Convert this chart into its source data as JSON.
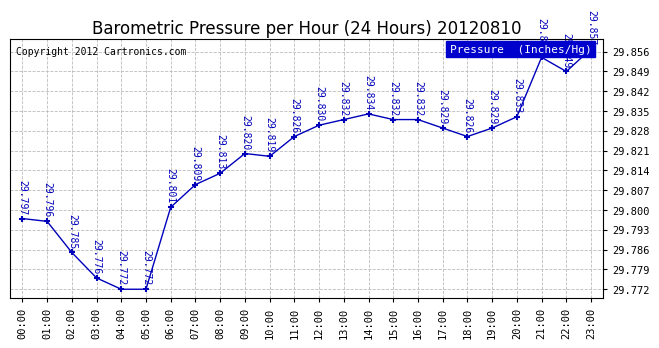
{
  "title": "Barometric Pressure per Hour (24 Hours) 20120810",
  "copyright": "Copyright 2012 Cartronics.com",
  "legend_label": "Pressure  (Inches/Hg)",
  "hours": [
    "00:00",
    "01:00",
    "02:00",
    "03:00",
    "04:00",
    "05:00",
    "06:00",
    "07:00",
    "08:00",
    "09:00",
    "10:00",
    "11:00",
    "12:00",
    "13:00",
    "14:00",
    "15:00",
    "16:00",
    "17:00",
    "18:00",
    "19:00",
    "20:00",
    "21:00",
    "22:00",
    "23:00"
  ],
  "values": [
    29.797,
    29.796,
    29.785,
    29.776,
    29.772,
    29.772,
    29.801,
    29.809,
    29.813,
    29.82,
    29.819,
    29.826,
    29.83,
    29.832,
    29.834,
    29.832,
    29.832,
    29.829,
    29.826,
    29.829,
    29.833,
    29.854,
    29.849,
    29.857
  ],
  "ylim_min": 29.769,
  "ylim_max": 29.8605,
  "ytick_start": 29.772,
  "ytick_step": 0.007,
  "ytick_count": 13,
  "line_color": "#0000bb",
  "marker_color": "#0000bb",
  "bg_color": "#ffffff",
  "grid_color": "#bbbbbb",
  "title_fontsize": 12,
  "label_fontsize": 7,
  "tick_fontsize": 7.5,
  "copyright_fontsize": 7,
  "legend_bg": "#0000cc",
  "legend_fg": "#ffffff"
}
